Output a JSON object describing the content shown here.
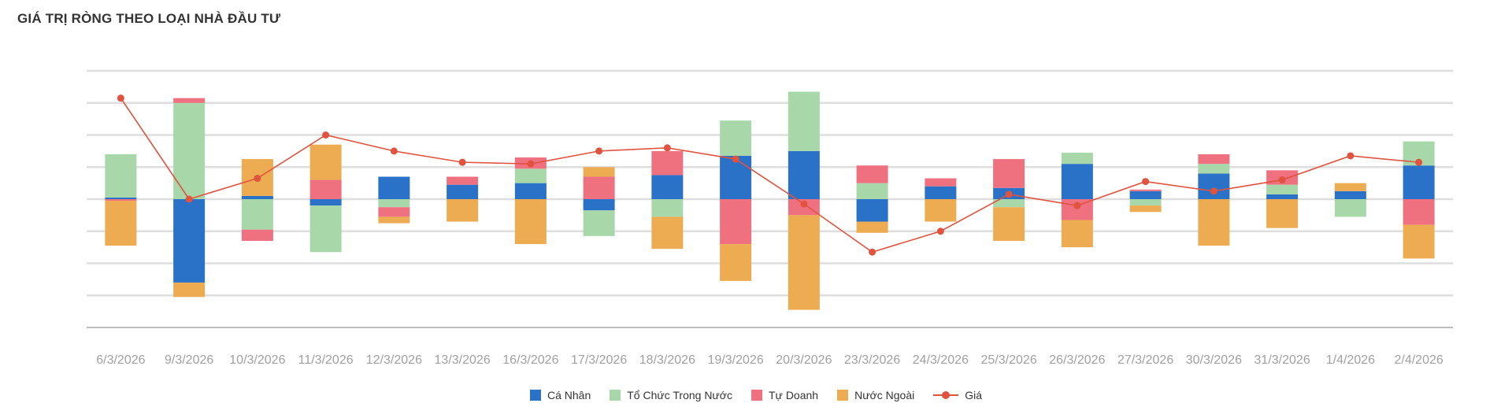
{
  "title": "GIÁ TRỊ RÒNG THEO LOẠI NHÀ ĐẦU TƯ",
  "chart_data": {
    "type": "bar",
    "stacked": true,
    "categories": [
      "6/3/2026",
      "9/3/2026",
      "10/3/2026",
      "11/3/2026",
      "12/3/2026",
      "13/3/2026",
      "16/3/2026",
      "17/3/2026",
      "18/3/2026",
      "19/3/2026",
      "20/3/2026",
      "23/3/2026",
      "24/3/2026",
      "25/3/2026",
      "26/3/2026",
      "27/3/2026",
      "30/3/2026",
      "31/3/2026",
      "1/4/2026",
      "2/4/2026"
    ],
    "series": [
      {
        "name": "Cá Nhân",
        "color": "#2a72c8",
        "values": [
          0.1,
          -5.2,
          0.2,
          -0.4,
          1.4,
          0.9,
          1.0,
          -0.7,
          1.5,
          2.7,
          3.0,
          -1.4,
          0.8,
          0.7,
          2.2,
          0.5,
          1.6,
          0.3,
          0.5,
          2.1
        ]
      },
      {
        "name": "Tổ Chức Trong Nước",
        "color": "#a8d8aa",
        "values": [
          2.7,
          6.0,
          -1.9,
          -2.9,
          -0.5,
          0,
          0.9,
          -1.6,
          -1.1,
          2.2,
          3.7,
          1.0,
          0,
          -0.5,
          0.7,
          -0.4,
          0.6,
          0.6,
          -1.1,
          1.5
        ]
      },
      {
        "name": "Tự Doanh",
        "color": "#ef7180",
        "values": [
          -0.1,
          0.3,
          -0.7,
          1.2,
          -0.6,
          0.5,
          0.7,
          1.4,
          1.5,
          -2.8,
          -1.0,
          1.1,
          0.5,
          1.8,
          -1.3,
          0.1,
          0.6,
          0.9,
          0,
          -1.6
        ]
      },
      {
        "name": "Nước Ngoài",
        "color": "#eeac52",
        "values": [
          -2.8,
          -0.9,
          2.3,
          2.2,
          -0.4,
          -1.4,
          -2.8,
          0.6,
          -2.0,
          -2.3,
          -5.9,
          -0.7,
          -1.4,
          -2.1,
          -1.7,
          -0.4,
          -2.9,
          -1.8,
          0.5,
          -2.1
        ]
      }
    ],
    "line": {
      "name": "Giá",
      "color": "#e0533f",
      "values": [
        6.3,
        0.0,
        1.3,
        4.0,
        3.0,
        2.3,
        2.2,
        3.0,
        3.2,
        2.5,
        -0.3,
        -3.3,
        -2.0,
        0.3,
        -0.4,
        1.1,
        0.5,
        1.2,
        2.7,
        2.3
      ]
    },
    "ylim": [
      -8,
      8
    ],
    "grid": true,
    "legend_position": "bottom-center",
    "xlabel": "",
    "ylabel": ""
  }
}
